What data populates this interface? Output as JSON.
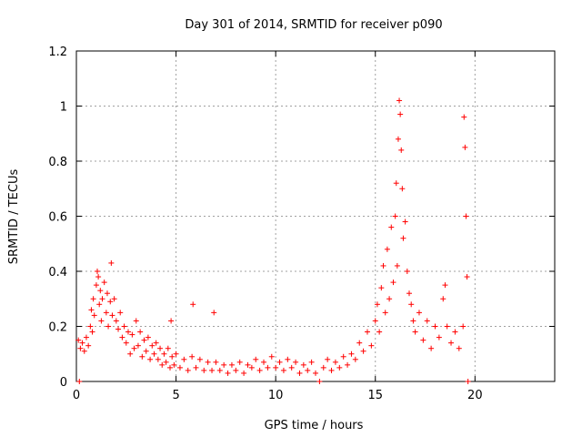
{
  "chart_data": {
    "type": "scatter",
    "title": "Day 301 of 2014, SRMTID for receiver p090",
    "xlabel": "GPS time / hours",
    "ylabel": "SRMTID / TECUs",
    "xlim": [
      0,
      24
    ],
    "ylim": [
      0,
      1.2
    ],
    "xticks": [
      0,
      5,
      10,
      15,
      20
    ],
    "xtick_labels": [
      "0",
      "5",
      "10",
      "15",
      "20"
    ],
    "yticks": [
      0,
      0.2,
      0.4,
      0.6,
      0.8,
      1.0,
      1.2
    ],
    "ytick_labels": [
      "0",
      "0.2",
      "0.4",
      "0.6",
      "0.8",
      "1",
      "1.2"
    ],
    "grid": true,
    "marker": "+",
    "series": [
      {
        "name": "SRMTID",
        "color": "#ff0000",
        "points": [
          [
            0.1,
            0.15
          ],
          [
            0.15,
            0.0
          ],
          [
            0.2,
            0.12
          ],
          [
            0.3,
            0.14
          ],
          [
            0.4,
            0.11
          ],
          [
            0.5,
            0.16
          ],
          [
            0.6,
            0.13
          ],
          [
            0.7,
            0.2
          ],
          [
            0.75,
            0.26
          ],
          [
            0.8,
            0.18
          ],
          [
            0.85,
            0.3
          ],
          [
            0.9,
            0.24
          ],
          [
            1.0,
            0.35
          ],
          [
            1.05,
            0.4
          ],
          [
            1.1,
            0.38
          ],
          [
            1.15,
            0.28
          ],
          [
            1.2,
            0.33
          ],
          [
            1.25,
            0.22
          ],
          [
            1.3,
            0.3
          ],
          [
            1.4,
            0.36
          ],
          [
            1.5,
            0.25
          ],
          [
            1.55,
            0.32
          ],
          [
            1.6,
            0.2
          ],
          [
            1.7,
            0.29
          ],
          [
            1.75,
            0.43
          ],
          [
            1.8,
            0.24
          ],
          [
            1.9,
            0.3
          ],
          [
            2.0,
            0.22
          ],
          [
            2.1,
            0.19
          ],
          [
            2.2,
            0.25
          ],
          [
            2.3,
            0.16
          ],
          [
            2.4,
            0.2
          ],
          [
            2.5,
            0.14
          ],
          [
            2.6,
            0.18
          ],
          [
            2.7,
            0.1
          ],
          [
            2.8,
            0.17
          ],
          [
            2.9,
            0.12
          ],
          [
            3.0,
            0.22
          ],
          [
            3.1,
            0.13
          ],
          [
            3.2,
            0.18
          ],
          [
            3.3,
            0.09
          ],
          [
            3.4,
            0.15
          ],
          [
            3.5,
            0.11
          ],
          [
            3.6,
            0.16
          ],
          [
            3.7,
            0.08
          ],
          [
            3.8,
            0.13
          ],
          [
            3.9,
            0.1
          ],
          [
            4.0,
            0.14
          ],
          [
            4.1,
            0.08
          ],
          [
            4.2,
            0.12
          ],
          [
            4.3,
            0.06
          ],
          [
            4.4,
            0.1
          ],
          [
            4.5,
            0.07
          ],
          [
            4.6,
            0.12
          ],
          [
            4.7,
            0.05
          ],
          [
            4.75,
            0.22
          ],
          [
            4.8,
            0.09
          ],
          [
            4.9,
            0.06
          ],
          [
            5.0,
            0.1
          ],
          [
            5.2,
            0.05
          ],
          [
            5.4,
            0.08
          ],
          [
            5.6,
            0.04
          ],
          [
            5.8,
            0.09
          ],
          [
            5.85,
            0.28
          ],
          [
            6.0,
            0.05
          ],
          [
            6.2,
            0.08
          ],
          [
            6.4,
            0.04
          ],
          [
            6.6,
            0.07
          ],
          [
            6.8,
            0.04
          ],
          [
            6.9,
            0.25
          ],
          [
            7.0,
            0.07
          ],
          [
            7.2,
            0.04
          ],
          [
            7.4,
            0.06
          ],
          [
            7.6,
            0.03
          ],
          [
            7.8,
            0.06
          ],
          [
            8.0,
            0.04
          ],
          [
            8.2,
            0.07
          ],
          [
            8.4,
            0.03
          ],
          [
            8.6,
            0.06
          ],
          [
            8.8,
            0.05
          ],
          [
            9.0,
            0.08
          ],
          [
            9.2,
            0.04
          ],
          [
            9.4,
            0.07
          ],
          [
            9.6,
            0.05
          ],
          [
            9.8,
            0.09
          ],
          [
            10.0,
            0.05
          ],
          [
            10.2,
            0.07
          ],
          [
            10.4,
            0.04
          ],
          [
            10.6,
            0.08
          ],
          [
            10.8,
            0.05
          ],
          [
            11.0,
            0.07
          ],
          [
            11.2,
            0.03
          ],
          [
            11.4,
            0.06
          ],
          [
            11.6,
            0.04
          ],
          [
            11.8,
            0.07
          ],
          [
            12.0,
            0.03
          ],
          [
            12.2,
            0.0
          ],
          [
            12.4,
            0.05
          ],
          [
            12.6,
            0.08
          ],
          [
            12.8,
            0.04
          ],
          [
            13.0,
            0.07
          ],
          [
            13.2,
            0.05
          ],
          [
            13.4,
            0.09
          ],
          [
            13.6,
            0.06
          ],
          [
            13.8,
            0.1
          ],
          [
            14.0,
            0.08
          ],
          [
            14.2,
            0.14
          ],
          [
            14.4,
            0.11
          ],
          [
            14.6,
            0.18
          ],
          [
            14.8,
            0.13
          ],
          [
            15.0,
            0.22
          ],
          [
            15.1,
            0.28
          ],
          [
            15.2,
            0.18
          ],
          [
            15.3,
            0.34
          ],
          [
            15.4,
            0.42
          ],
          [
            15.5,
            0.25
          ],
          [
            15.6,
            0.48
          ],
          [
            15.7,
            0.3
          ],
          [
            15.8,
            0.56
          ],
          [
            15.9,
            0.36
          ],
          [
            16.0,
            0.6
          ],
          [
            16.05,
            0.72
          ],
          [
            16.1,
            0.42
          ],
          [
            16.15,
            0.88
          ],
          [
            16.2,
            1.02
          ],
          [
            16.25,
            0.97
          ],
          [
            16.3,
            0.84
          ],
          [
            16.35,
            0.7
          ],
          [
            16.4,
            0.52
          ],
          [
            16.5,
            0.58
          ],
          [
            16.6,
            0.4
          ],
          [
            16.7,
            0.32
          ],
          [
            16.8,
            0.28
          ],
          [
            16.9,
            0.22
          ],
          [
            17.0,
            0.18
          ],
          [
            17.2,
            0.25
          ],
          [
            17.4,
            0.15
          ],
          [
            17.6,
            0.22
          ],
          [
            17.8,
            0.12
          ],
          [
            18.0,
            0.2
          ],
          [
            18.2,
            0.16
          ],
          [
            18.4,
            0.3
          ],
          [
            18.5,
            0.35
          ],
          [
            18.6,
            0.2
          ],
          [
            18.8,
            0.14
          ],
          [
            19.0,
            0.18
          ],
          [
            19.2,
            0.12
          ],
          [
            19.4,
            0.2
          ],
          [
            19.45,
            0.96
          ],
          [
            19.5,
            0.85
          ],
          [
            19.55,
            0.6
          ],
          [
            19.6,
            0.38
          ],
          [
            19.65,
            0.0
          ]
        ]
      }
    ]
  }
}
